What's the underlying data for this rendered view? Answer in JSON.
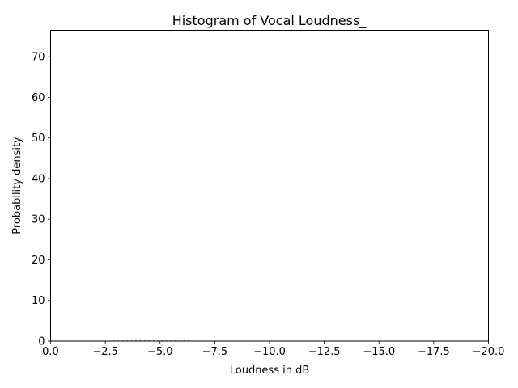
{
  "chart_data": {
    "type": "bar",
    "title": "Histogram of Vocal Loudness_",
    "xlabel": "Loudness in dB",
    "ylabel": "Probability density",
    "xlim": [
      0.0,
      -20.0
    ],
    "ylim": [
      0,
      76.5
    ],
    "x_ticks": [
      0.0,
      -2.5,
      -5.0,
      -7.5,
      -10.0,
      -12.5,
      -15.0,
      -17.5,
      -20.0
    ],
    "x_tick_labels": [
      "0.0",
      "−2.5",
      "−5.0",
      "−7.5",
      "−10.0",
      "−12.5",
      "−15.0",
      "−17.5",
      "−20.0"
    ],
    "y_ticks": [
      0,
      10,
      20,
      30,
      40,
      50,
      60,
      70
    ],
    "y_tick_labels": [
      "0",
      "10",
      "20",
      "30",
      "40",
      "50",
      "60",
      "70"
    ],
    "grid": false,
    "bar_color": "#2a7f8f",
    "bins": [
      {
        "x": -1.1,
        "y": 0.03
      },
      {
        "x": -1.3,
        "y": 0.03
      },
      {
        "x": -1.9,
        "y": 0.04
      },
      {
        "x": -2.1,
        "y": 0.05
      },
      {
        "x": -2.3,
        "y": 0.06
      },
      {
        "x": -2.5,
        "y": 0.08
      },
      {
        "x": -2.7,
        "y": 0.12
      },
      {
        "x": -2.9,
        "y": 0.15
      },
      {
        "x": -3.1,
        "y": 0.16
      },
      {
        "x": -3.3,
        "y": 0.17
      },
      {
        "x": -3.5,
        "y": 0.18
      },
      {
        "x": -3.7,
        "y": 0.18
      },
      {
        "x": -3.9,
        "y": 0.19
      },
      {
        "x": -4.1,
        "y": 0.19
      },
      {
        "x": -4.3,
        "y": 0.2
      },
      {
        "x": -4.5,
        "y": 0.2
      },
      {
        "x": -4.7,
        "y": 0.2
      },
      {
        "x": -4.9,
        "y": 0.2
      },
      {
        "x": -5.1,
        "y": 0.2
      },
      {
        "x": -5.3,
        "y": 0.19
      },
      {
        "x": -5.5,
        "y": 0.19
      },
      {
        "x": -5.7,
        "y": 0.18
      },
      {
        "x": -5.9,
        "y": 0.18
      },
      {
        "x": -6.1,
        "y": 0.17
      },
      {
        "x": -6.3,
        "y": 0.16
      },
      {
        "x": -6.5,
        "y": 0.15
      },
      {
        "x": -6.7,
        "y": 0.14
      },
      {
        "x": -6.9,
        "y": 0.13
      },
      {
        "x": -7.1,
        "y": 0.13
      },
      {
        "x": -7.3,
        "y": 0.12
      },
      {
        "x": -7.5,
        "y": 0.12
      },
      {
        "x": -7.7,
        "y": 0.11
      },
      {
        "x": -7.9,
        "y": 0.1
      },
      {
        "x": -8.1,
        "y": 0.09
      },
      {
        "x": -8.3,
        "y": 0.08
      },
      {
        "x": -8.5,
        "y": 0.07
      },
      {
        "x": -8.7,
        "y": 0.06
      },
      {
        "x": -8.9,
        "y": 0.06
      },
      {
        "x": -9.1,
        "y": 0.05
      },
      {
        "x": -9.3,
        "y": 0.05
      },
      {
        "x": -9.5,
        "y": 0.04
      },
      {
        "x": -9.7,
        "y": 0.04
      },
      {
        "x": -9.9,
        "y": 0.03
      },
      {
        "x": -10.3,
        "y": 0.02
      },
      {
        "x": -10.8,
        "y": 0.02
      }
    ],
    "bin_width": 0.05
  }
}
